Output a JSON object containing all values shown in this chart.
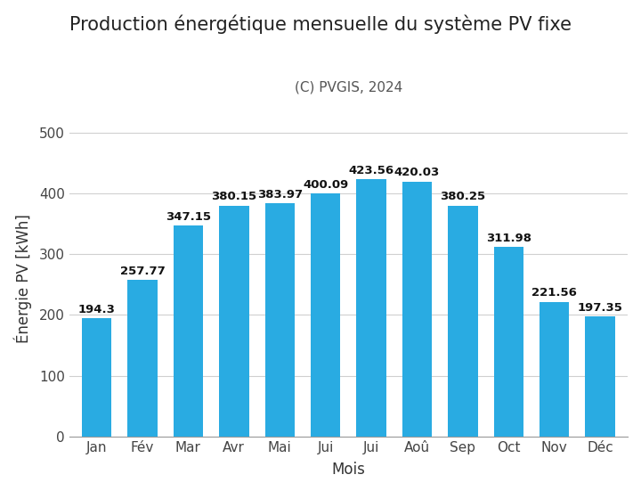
{
  "title": "Production énergétique mensuelle du système PV fixe",
  "subtitle": "(C) PVGIS, 2024",
  "xlabel": "Mois",
  "ylabel": "Énergie PV [kWh]",
  "months": [
    "Jan",
    "Fév",
    "Mar",
    "Avr",
    "Mai",
    "Jui",
    "Jui",
    "Aoû",
    "Sep",
    "Oct",
    "Nov",
    "Déc"
  ],
  "values": [
    194.3,
    257.77,
    347.15,
    380.15,
    383.97,
    400.09,
    423.56,
    420.03,
    380.25,
    311.98,
    221.56,
    197.35
  ],
  "bar_color": "#29ABE2",
  "ylim": [
    0,
    520
  ],
  "yticks": [
    0,
    100,
    200,
    300,
    400,
    500
  ],
  "background_color": "#ffffff",
  "grid_color": "#d0d0d0",
  "title_fontsize": 15,
  "subtitle_fontsize": 11,
  "label_fontsize": 12,
  "tick_fontsize": 11,
  "value_fontsize": 9.5
}
